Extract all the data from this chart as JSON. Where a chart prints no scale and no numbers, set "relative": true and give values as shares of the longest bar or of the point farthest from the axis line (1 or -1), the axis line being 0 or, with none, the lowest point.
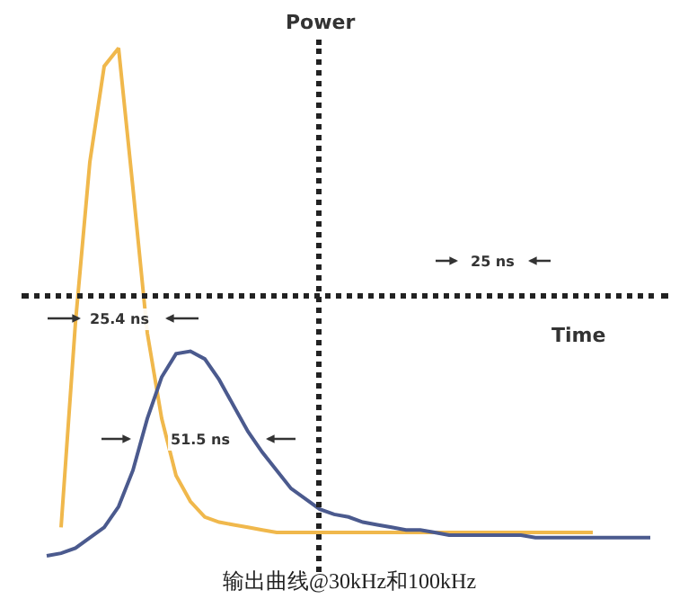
{
  "chart_data": {
    "type": "line",
    "relative": true,
    "line_style": "solid",
    "marker": "none",
    "xlabel": "Time",
    "ylabel": "Power",
    "categories": [
      null,
      null,
      null,
      null,
      null,
      null,
      null,
      null,
      null,
      null,
      null,
      null,
      null,
      null,
      null,
      null,
      null,
      null,
      null,
      null,
      null,
      null,
      null,
      null,
      null,
      null,
      null,
      null,
      null,
      null,
      null,
      null,
      null,
      null,
      null,
      null,
      null,
      null,
      null,
      null,
      null,
      null,
      null
    ],
    "series": [
      {
        "color": "#f0b84c",
        "values": [
          null,
          -0.89,
          -0.1,
          0.52,
          0.89,
          0.96,
          0.42,
          -0.14,
          -0.47,
          -0.69,
          -0.79,
          -0.85,
          -0.87,
          -0.88,
          -0.89,
          -0.9,
          -0.91,
          -0.91,
          -0.91,
          -0.91,
          -0.91,
          -0.91,
          -0.91,
          -0.91,
          -0.91,
          -0.91,
          -0.91,
          -0.91,
          -0.91,
          -0.91,
          -0.91,
          -0.91,
          -0.91,
          -0.91,
          -0.91,
          -0.91,
          -0.91,
          -0.91,
          -0.91,
          null,
          null,
          null,
          null
        ]
      },
      {
        "color": "#4b5a8e",
        "values": [
          -1.0,
          -0.99,
          -0.97,
          -0.93,
          -0.89,
          -0.81,
          -0.67,
          -0.47,
          -0.31,
          -0.22,
          -0.21,
          -0.24,
          -0.32,
          -0.42,
          -0.52,
          -0.6,
          -0.67,
          -0.74,
          -0.78,
          -0.82,
          -0.84,
          -0.85,
          -0.87,
          -0.88,
          -0.89,
          -0.9,
          -0.9,
          -0.91,
          -0.92,
          -0.92,
          -0.92,
          -0.92,
          -0.92,
          -0.92,
          -0.93,
          -0.93,
          -0.93,
          -0.93,
          -0.93,
          -0.93,
          -0.93,
          -0.93,
          -0.93
        ]
      }
    ],
    "annotations": [
      "25.4 ns",
      "51.5 ns",
      "25 ns",
      "输出曲线@30kHz和100kHz"
    ]
  }
}
